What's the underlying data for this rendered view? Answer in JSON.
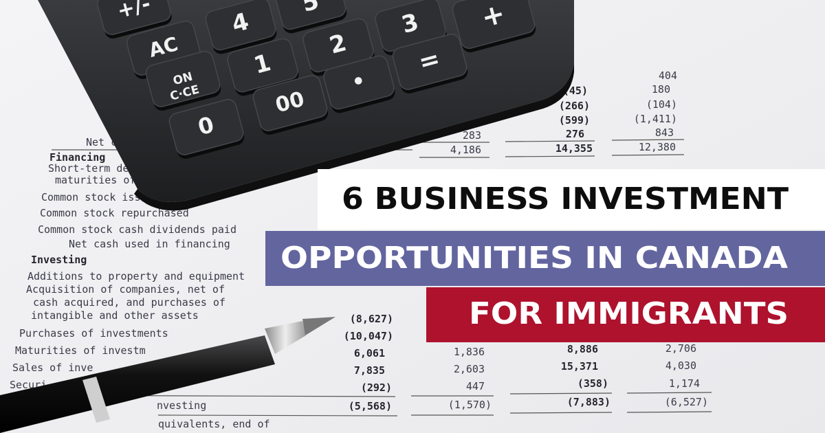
{
  "headline": {
    "line1": "6 BUSINESS INVESTMENT",
    "line2": "OPPORTUNITIES IN CANADA",
    "line3": "FOR IMMIGRANTS"
  },
  "calculator": {
    "keys": [
      "+/-",
      "4",
      "5",
      "AC",
      "1",
      "2",
      "3",
      "+",
      "ON",
      "C·CE",
      "•",
      "00",
      "=",
      "0"
    ]
  },
  "statement": {
    "labels": [
      "Net ca",
      "Financing",
      "Short-term de",
      "maturities of 9",
      "Common stock issued",
      "Common stock repurchased",
      "Common stock cash dividends paid",
      "Net cash used in financing",
      "Investing",
      "Additions to property and equipment",
      "Acquisition of companies, net of",
      "cash acquired, and purchases of",
      "intangible and other assets",
      "Purchases of investments",
      "Maturities of investm",
      "Sales of inve",
      "Securi",
      "nvesting",
      "quivalents, end of"
    ],
    "numbers": [
      "404",
      "(45)",
      "180",
      "(266)",
      "(104)",
      "(599)",
      "(1,411)",
      "283",
      "276",
      "843",
      "4,186",
      "14,355",
      "12,380",
      "(8,627)",
      "(10,047)",
      "6,061",
      "1,836",
      "8,886",
      "2,706",
      "7,835",
      "2,603",
      "15,371",
      "4,030",
      "(292)",
      "447",
      "(358)",
      "1,174",
      "(5,568)",
      "(1,570)",
      "(7,883)",
      "(6,527)"
    ]
  }
}
